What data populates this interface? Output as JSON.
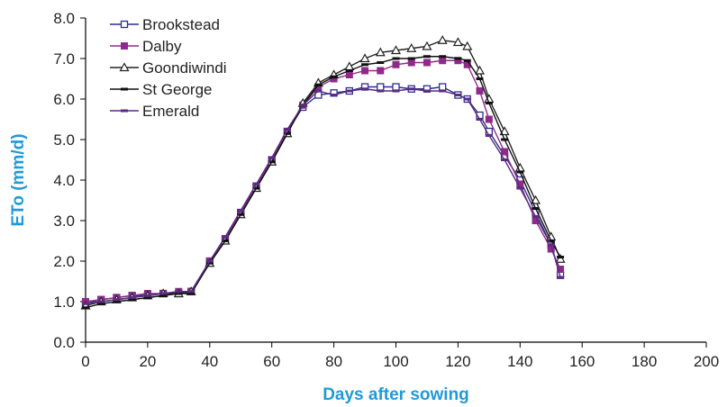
{
  "chart_data": {
    "type": "line",
    "title": "",
    "xlabel": "Days after sowing",
    "ylabel": "ETo (mm/d)",
    "xlim": [
      0,
      200
    ],
    "ylim": [
      0,
      8
    ],
    "xticks": [
      "0",
      "20",
      "40",
      "60",
      "80",
      "100",
      "120",
      "140",
      "160",
      "180",
      "200"
    ],
    "yticks": [
      "0.0",
      "1.0",
      "2.0",
      "3.0",
      "4.0",
      "5.0",
      "6.0",
      "7.0",
      "8.0"
    ],
    "grid": false,
    "legend_position": "top-left",
    "series": [
      {
        "name": "Brookstead",
        "color": "#2b2f8c",
        "marker": "square-open",
        "x": [
          0,
          5,
          10,
          15,
          20,
          25,
          30,
          34,
          40,
          45,
          50,
          55,
          60,
          65,
          70,
          75,
          80,
          85,
          90,
          95,
          100,
          105,
          110,
          115,
          120,
          123,
          127,
          130,
          135,
          140,
          145,
          150,
          153
        ],
        "y": [
          0.95,
          1.05,
          1.1,
          1.15,
          1.15,
          1.2,
          1.2,
          1.25,
          2.0,
          2.55,
          3.2,
          3.85,
          4.5,
          5.2,
          5.8,
          6.1,
          6.15,
          6.2,
          6.3,
          6.3,
          6.3,
          6.25,
          6.25,
          6.3,
          6.1,
          6.0,
          5.6,
          5.2,
          4.6,
          4.0,
          3.2,
          2.4,
          1.65
        ]
      },
      {
        "name": "Dalby",
        "color": "#8e2a8a",
        "marker": "square-filled",
        "x": [
          0,
          5,
          10,
          15,
          20,
          25,
          30,
          34,
          40,
          45,
          50,
          55,
          60,
          65,
          70,
          75,
          80,
          85,
          90,
          95,
          100,
          105,
          110,
          115,
          120,
          123,
          127,
          130,
          135,
          140,
          145,
          150,
          153
        ],
        "y": [
          1.0,
          1.05,
          1.1,
          1.15,
          1.2,
          1.2,
          1.25,
          1.25,
          2.0,
          2.55,
          3.2,
          3.85,
          4.5,
          5.2,
          5.85,
          6.3,
          6.5,
          6.6,
          6.7,
          6.7,
          6.85,
          6.9,
          6.9,
          6.95,
          6.95,
          6.85,
          6.2,
          5.5,
          4.7,
          3.9,
          3.0,
          2.3,
          1.8
        ]
      },
      {
        "name": "Goondiwindi",
        "color": "#222222",
        "marker": "triangle-open",
        "x": [
          0,
          5,
          10,
          15,
          20,
          25,
          30,
          34,
          40,
          45,
          50,
          55,
          60,
          65,
          70,
          75,
          80,
          85,
          90,
          95,
          100,
          105,
          110,
          115,
          120,
          123,
          127,
          130,
          135,
          140,
          145,
          150,
          153
        ],
        "y": [
          0.9,
          1.0,
          1.05,
          1.1,
          1.15,
          1.2,
          1.2,
          1.25,
          1.95,
          2.5,
          3.15,
          3.8,
          4.45,
          5.15,
          5.9,
          6.4,
          6.6,
          6.8,
          7.0,
          7.15,
          7.2,
          7.25,
          7.3,
          7.45,
          7.4,
          7.3,
          6.7,
          6.0,
          5.2,
          4.3,
          3.5,
          2.6,
          2.05
        ]
      },
      {
        "name": "St George",
        "color": "#111111",
        "marker": "dash",
        "x": [
          0,
          5,
          10,
          15,
          20,
          25,
          30,
          34,
          40,
          45,
          50,
          55,
          60,
          65,
          70,
          75,
          80,
          85,
          90,
          95,
          100,
          105,
          110,
          115,
          120,
          123,
          127,
          130,
          135,
          140,
          145,
          150,
          153
        ],
        "y": [
          0.85,
          0.95,
          1.0,
          1.05,
          1.1,
          1.15,
          1.2,
          1.2,
          1.95,
          2.5,
          3.15,
          3.8,
          4.45,
          5.15,
          5.85,
          6.35,
          6.55,
          6.7,
          6.85,
          6.9,
          7.0,
          7.0,
          7.05,
          7.05,
          7.0,
          6.95,
          6.5,
          5.9,
          5.0,
          4.2,
          3.3,
          2.5,
          2.1
        ]
      },
      {
        "name": "Emerald",
        "color": "#5a2c82",
        "marker": "dash",
        "x": [
          0,
          5,
          10,
          15,
          20,
          25,
          30,
          34,
          40,
          45,
          50,
          55,
          60,
          65,
          70,
          75,
          80,
          85,
          90,
          95,
          100,
          105,
          110,
          115,
          120,
          123,
          127,
          130,
          135,
          140,
          145,
          150,
          153
        ],
        "y": [
          0.95,
          1.0,
          1.05,
          1.1,
          1.15,
          1.2,
          1.25,
          1.25,
          2.0,
          2.6,
          3.25,
          3.9,
          4.55,
          5.25,
          5.85,
          6.2,
          6.1,
          6.2,
          6.25,
          6.2,
          6.2,
          6.25,
          6.2,
          6.2,
          6.1,
          6.0,
          5.5,
          5.1,
          4.5,
          3.8,
          3.1,
          2.4,
          1.6
        ]
      }
    ]
  }
}
